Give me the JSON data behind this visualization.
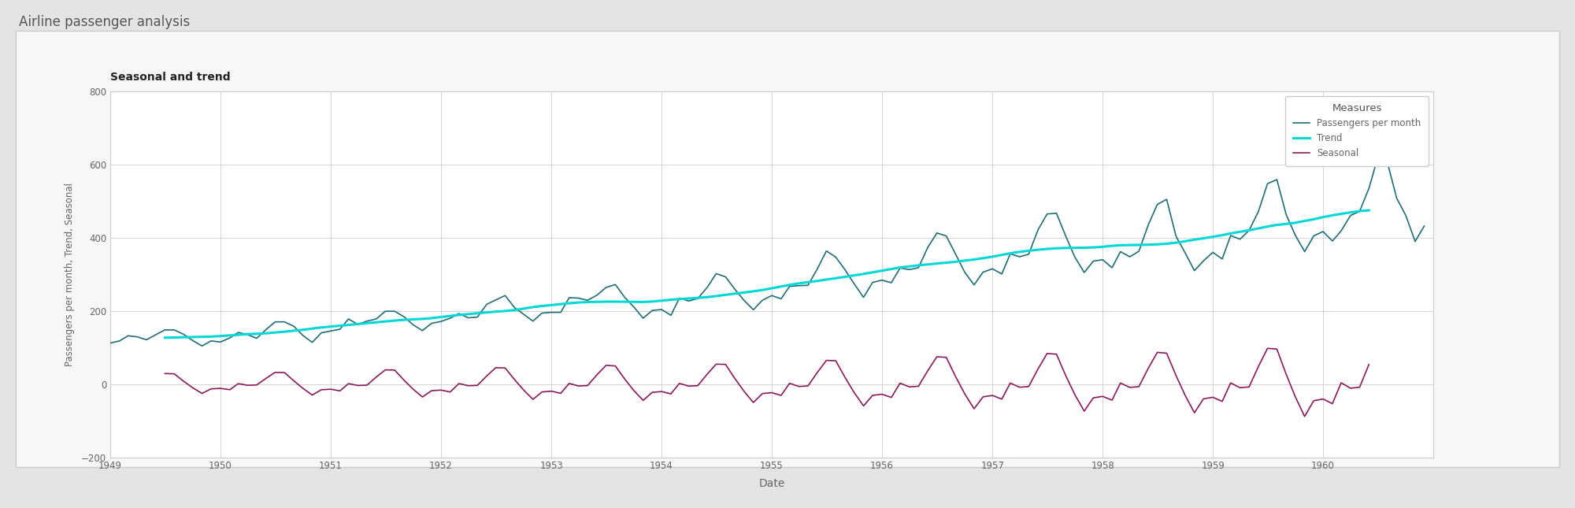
{
  "title": "Airline passenger analysis",
  "subtitle": "Seasonal and trend",
  "xlabel": "Date",
  "ylabel": "Passengers per month, Trend, Seasonal",
  "ylim": [
    -200,
    800
  ],
  "yticks": [
    -200,
    0,
    200,
    400,
    600,
    800
  ],
  "outer_bg_color": "#e8e8e8",
  "inner_bg_color": "#f5f5f5",
  "plot_bg_color": "#ffffff",
  "passengers_color": "#1f6e78",
  "trend_color": "#00d8d8",
  "seasonal_color": "#8b1a5c",
  "legend_title": "Measures",
  "legend_labels": [
    "Passengers per month",
    "Trend",
    "Seasonal"
  ],
  "passengers": [
    112,
    118,
    132,
    129,
    121,
    135,
    148,
    148,
    136,
    119,
    104,
    118,
    115,
    126,
    141,
    135,
    125,
    149,
    170,
    170,
    158,
    133,
    114,
    140,
    145,
    150,
    178,
    163,
    172,
    178,
    199,
    199,
    184,
    162,
    146,
    166,
    171,
    180,
    193,
    181,
    183,
    218,
    230,
    242,
    209,
    191,
    172,
    194,
    196,
    196,
    236,
    235,
    229,
    243,
    264,
    272,
    237,
    211,
    180,
    201,
    204,
    188,
    235,
    227,
    234,
    264,
    302,
    293,
    259,
    229,
    203,
    229,
    242,
    233,
    267,
    269,
    270,
    315,
    364,
    347,
    312,
    274,
    237,
    278,
    284,
    277,
    317,
    313,
    318,
    374,
    413,
    405,
    355,
    306,
    271,
    306,
    315,
    301,
    356,
    348,
    355,
    422,
    465,
    467,
    404,
    347,
    305,
    336,
    340,
    318,
    362,
    348,
    363,
    435,
    491,
    505,
    404,
    359,
    310,
    337,
    360,
    342,
    406,
    396,
    420,
    472,
    548,
    559,
    463,
    407,
    362,
    405,
    417,
    391,
    419,
    461,
    472,
    535,
    622,
    606,
    508,
    461,
    390,
    432
  ]
}
